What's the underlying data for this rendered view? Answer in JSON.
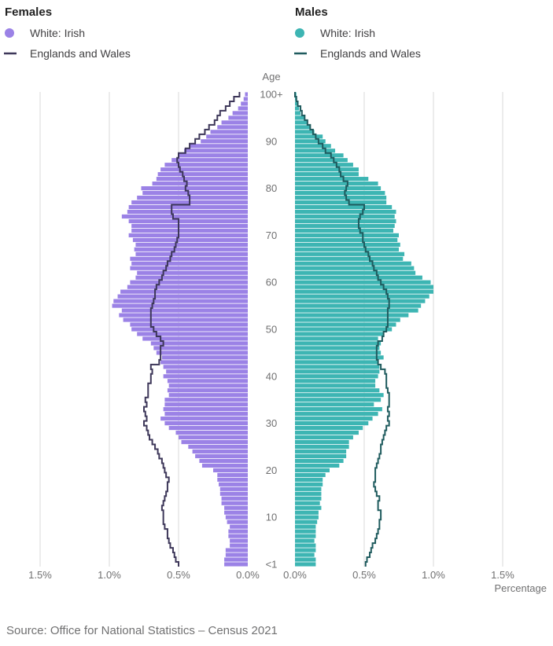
{
  "panels": [
    {
      "title": "Females",
      "legend_series": "White: Irish",
      "legend_line": "Englands and Wales",
      "series_color": "#9B82E6",
      "line_color": "#3D3759"
    },
    {
      "title": "Males",
      "legend_series": "White: Irish",
      "legend_line": "Englands and Wales",
      "series_color": "#3DB5B3",
      "line_color": "#1F5B5E"
    }
  ],
  "axis": {
    "age_title": "Age",
    "age_ticks": [
      {
        "age": 0,
        "label": "<1"
      },
      {
        "age": 10,
        "label": "10"
      },
      {
        "age": 20,
        "label": "20"
      },
      {
        "age": 30,
        "label": "30"
      },
      {
        "age": 40,
        "label": "40"
      },
      {
        "age": 50,
        "label": "50"
      },
      {
        "age": 60,
        "label": "60"
      },
      {
        "age": 70,
        "label": "70"
      },
      {
        "age": 80,
        "label": "80"
      },
      {
        "age": 90,
        "label": "90"
      },
      {
        "age": 100,
        "label": "100+"
      }
    ],
    "x_ticks": [
      {
        "value": 1.5,
        "label": "1.5%"
      },
      {
        "value": 1.0,
        "label": "1.0%"
      },
      {
        "value": 0.5,
        "label": "0.5%"
      },
      {
        "value": 0.0,
        "label": "0.0%"
      }
    ],
    "x_title": "Percentage"
  },
  "chart_data": {
    "type": "bar",
    "orientation": "population-pyramid",
    "age_range": [
      0,
      100
    ],
    "xlim": [
      0,
      1.5
    ],
    "grid": true,
    "females": {
      "white_irish": [
        0.17,
        0.17,
        0.16,
        0.16,
        0.13,
        0.13,
        0.14,
        0.14,
        0.13,
        0.15,
        0.16,
        0.17,
        0.17,
        0.19,
        0.19,
        0.2,
        0.2,
        0.21,
        0.22,
        0.22,
        0.25,
        0.33,
        0.35,
        0.38,
        0.4,
        0.43,
        0.48,
        0.5,
        0.52,
        0.57,
        0.6,
        0.63,
        0.6,
        0.61,
        0.6,
        0.6,
        0.57,
        0.58,
        0.57,
        0.58,
        0.61,
        0.59,
        0.61,
        0.63,
        0.62,
        0.66,
        0.68,
        0.7,
        0.76,
        0.8,
        0.84,
        0.85,
        0.9,
        0.93,
        0.91,
        0.98,
        0.97,
        0.94,
        0.92,
        0.87,
        0.85,
        0.81,
        0.8,
        0.85,
        0.84,
        0.85,
        0.81,
        0.82,
        0.81,
        0.83,
        0.86,
        0.84,
        0.84,
        0.86,
        0.91,
        0.87,
        0.86,
        0.84,
        0.8,
        0.76,
        0.77,
        0.69,
        0.66,
        0.65,
        0.63,
        0.6,
        0.55,
        0.5,
        0.46,
        0.42,
        0.34,
        0.3,
        0.27,
        0.22,
        0.19,
        0.14,
        0.11,
        0.07,
        0.05,
        0.03,
        0.02
      ],
      "england_wales": [
        0.5,
        0.52,
        0.53,
        0.54,
        0.56,
        0.57,
        0.58,
        0.58,
        0.6,
        0.61,
        0.61,
        0.61,
        0.62,
        0.61,
        0.6,
        0.59,
        0.58,
        0.58,
        0.57,
        0.59,
        0.6,
        0.61,
        0.62,
        0.64,
        0.65,
        0.67,
        0.69,
        0.71,
        0.72,
        0.73,
        0.75,
        0.73,
        0.74,
        0.75,
        0.73,
        0.74,
        0.72,
        0.72,
        0.72,
        0.7,
        0.7,
        0.69,
        0.7,
        0.64,
        0.63,
        0.63,
        0.63,
        0.61,
        0.63,
        0.66,
        0.68,
        0.7,
        0.7,
        0.7,
        0.7,
        0.69,
        0.68,
        0.67,
        0.67,
        0.66,
        0.64,
        0.62,
        0.61,
        0.59,
        0.58,
        0.56,
        0.55,
        0.53,
        0.52,
        0.51,
        0.5,
        0.5,
        0.5,
        0.5,
        0.54,
        0.55,
        0.55,
        0.42,
        0.42,
        0.43,
        0.45,
        0.44,
        0.46,
        0.47,
        0.49,
        0.5,
        0.51,
        0.5,
        0.45,
        0.42,
        0.38,
        0.35,
        0.31,
        0.28,
        0.24,
        0.22,
        0.2,
        0.16,
        0.13,
        0.1,
        0.06
      ]
    },
    "males": {
      "white_irish": [
        0.15,
        0.15,
        0.14,
        0.15,
        0.15,
        0.14,
        0.15,
        0.15,
        0.15,
        0.16,
        0.17,
        0.17,
        0.19,
        0.18,
        0.19,
        0.19,
        0.19,
        0.2,
        0.2,
        0.22,
        0.25,
        0.32,
        0.35,
        0.37,
        0.37,
        0.39,
        0.39,
        0.42,
        0.46,
        0.49,
        0.53,
        0.56,
        0.6,
        0.63,
        0.57,
        0.62,
        0.64,
        0.61,
        0.58,
        0.58,
        0.6,
        0.61,
        0.61,
        0.6,
        0.64,
        0.62,
        0.61,
        0.62,
        0.6,
        0.64,
        0.7,
        0.73,
        0.76,
        0.82,
        0.89,
        0.91,
        0.94,
        0.97,
        1.0,
        1.0,
        0.98,
        0.92,
        0.87,
        0.86,
        0.84,
        0.78,
        0.79,
        0.75,
        0.76,
        0.74,
        0.75,
        0.71,
        0.72,
        0.73,
        0.72,
        0.73,
        0.7,
        0.66,
        0.66,
        0.65,
        0.62,
        0.6,
        0.53,
        0.46,
        0.46,
        0.42,
        0.38,
        0.35,
        0.29,
        0.26,
        0.22,
        0.2,
        0.14,
        0.11,
        0.09,
        0.07,
        0.04,
        0.03,
        0.02,
        0.01,
        0.01
      ],
      "england_wales": [
        0.51,
        0.52,
        0.54,
        0.55,
        0.56,
        0.58,
        0.59,
        0.6,
        0.61,
        0.61,
        0.62,
        0.62,
        0.6,
        0.6,
        0.61,
        0.59,
        0.58,
        0.57,
        0.58,
        0.58,
        0.58,
        0.59,
        0.6,
        0.61,
        0.62,
        0.62,
        0.63,
        0.64,
        0.65,
        0.66,
        0.68,
        0.67,
        0.68,
        0.67,
        0.68,
        0.68,
        0.68,
        0.67,
        0.66,
        0.66,
        0.66,
        0.65,
        0.62,
        0.6,
        0.59,
        0.59,
        0.59,
        0.6,
        0.63,
        0.64,
        0.66,
        0.67,
        0.67,
        0.67,
        0.67,
        0.68,
        0.68,
        0.67,
        0.66,
        0.64,
        0.62,
        0.6,
        0.59,
        0.57,
        0.56,
        0.54,
        0.53,
        0.51,
        0.5,
        0.49,
        0.49,
        0.47,
        0.46,
        0.46,
        0.47,
        0.49,
        0.5,
        0.39,
        0.37,
        0.36,
        0.37,
        0.38,
        0.35,
        0.33,
        0.32,
        0.3,
        0.28,
        0.26,
        0.22,
        0.2,
        0.17,
        0.15,
        0.13,
        0.11,
        0.09,
        0.07,
        0.05,
        0.04,
        0.02,
        0.01,
        0.0
      ]
    }
  },
  "source": "Source: Office for National Statistics – Census 2021"
}
